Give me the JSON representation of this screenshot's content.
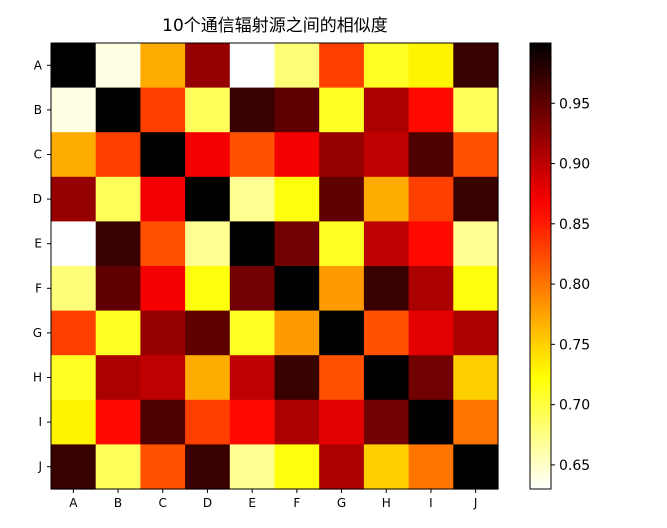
{
  "chart_data": {
    "type": "heatmap",
    "title": "10个通信辐射源之间的相似度",
    "xlabel": "",
    "ylabel": "",
    "x_categories": [
      "A",
      "B",
      "C",
      "D",
      "E",
      "F",
      "G",
      "H",
      "I",
      "J"
    ],
    "y_categories": [
      "A",
      "B",
      "C",
      "D",
      "E",
      "F",
      "G",
      "H",
      "I",
      "J"
    ],
    "values": [
      [
        1.0,
        0.64,
        0.77,
        0.92,
        0.63,
        0.68,
        0.83,
        0.71,
        0.73,
        0.97
      ],
      [
        0.64,
        1.0,
        0.83,
        0.69,
        0.97,
        0.95,
        0.71,
        0.91,
        0.86,
        0.69
      ],
      [
        0.77,
        0.83,
        1.0,
        0.87,
        0.82,
        0.87,
        0.92,
        0.9,
        0.96,
        0.82
      ],
      [
        0.92,
        0.69,
        0.87,
        1.0,
        0.67,
        0.72,
        0.95,
        0.77,
        0.83,
        0.97
      ],
      [
        0.63,
        0.97,
        0.82,
        0.67,
        1.0,
        0.94,
        0.71,
        0.9,
        0.86,
        0.67
      ],
      [
        0.68,
        0.95,
        0.87,
        0.72,
        0.94,
        1.0,
        0.78,
        0.97,
        0.91,
        0.72
      ],
      [
        0.83,
        0.71,
        0.92,
        0.95,
        0.71,
        0.78,
        1.0,
        0.82,
        0.88,
        0.91
      ],
      [
        0.71,
        0.91,
        0.9,
        0.77,
        0.9,
        0.97,
        0.82,
        1.0,
        0.94,
        0.75
      ],
      [
        0.73,
        0.86,
        0.96,
        0.83,
        0.86,
        0.91,
        0.88,
        0.94,
        1.0,
        0.8
      ],
      [
        0.97,
        0.69,
        0.82,
        0.97,
        0.67,
        0.72,
        0.91,
        0.75,
        0.8,
        1.0
      ]
    ],
    "colorbar": {
      "range": [
        0.63,
        1.0
      ],
      "ticks": [
        "0.65",
        "0.70",
        "0.75",
        "0.80",
        "0.85",
        "0.90",
        "0.95"
      ],
      "colormap": "hot_r"
    },
    "grid": false,
    "legend": "none"
  }
}
